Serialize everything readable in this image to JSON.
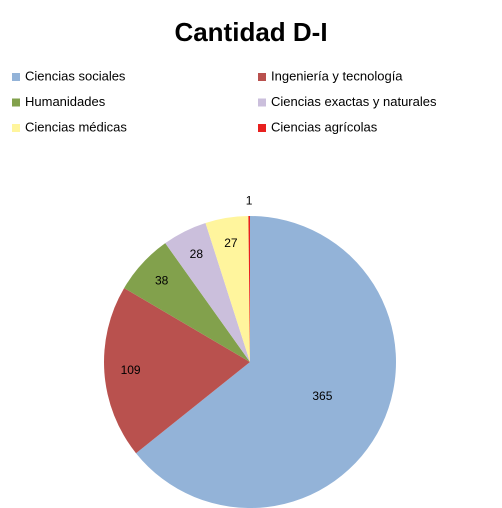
{
  "chart_data": {
    "type": "pie",
    "title": "Cantidad D-I",
    "categories": [
      "Ciencias sociales",
      "Ingeniería y tecnología",
      "Humanidades",
      "Ciencias exactas y naturales",
      "Ciencias médicas",
      "Ciencias agrícolas"
    ],
    "values": [
      365,
      109,
      38,
      28,
      27,
      1
    ],
    "colors": [
      "#93b3d8",
      "#b9514e",
      "#82a14c",
      "#cbbfdc",
      "#fff59d",
      "#e8201f"
    ],
    "legend": "top"
  }
}
